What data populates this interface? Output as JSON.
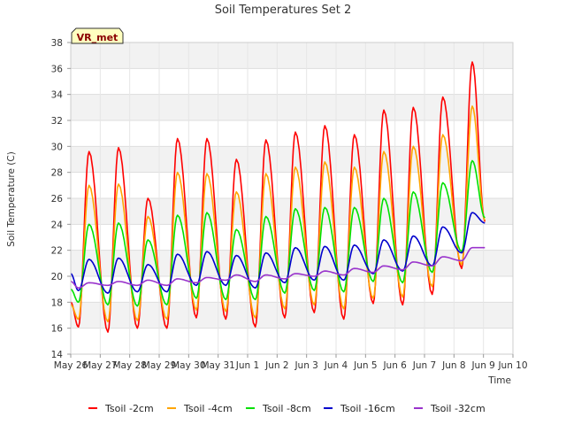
{
  "chart_data": {
    "type": "line",
    "title": "Soil Temperatures Set 2",
    "xlabel": "Time",
    "ylabel": "Soil Temperature (C)",
    "station_label": "VR_met",
    "x_ticks": [
      "May 26",
      "May 27",
      "May 28",
      "May 29",
      "May 30",
      "May 31",
      "Jun 1",
      "Jun 2",
      "Jun 3",
      "Jun 4",
      "Jun 5",
      "Jun 6",
      "Jun 7",
      "Jun 8",
      "Jun 9",
      "Jun 10"
    ],
    "xlim": [
      0,
      15
    ],
    "ylim": [
      14,
      38
    ],
    "y_ticks": [
      14,
      16,
      18,
      20,
      22,
      24,
      26,
      28,
      30,
      32,
      34,
      36,
      38
    ],
    "grid": true,
    "legend_position": "bottom",
    "peak_phase": 0.62,
    "trough_phase": 0.26,
    "series": [
      {
        "name": "Tsoil -2cm",
        "color": "#ff0000",
        "start": 18.0,
        "end": 24.2,
        "days": [
          {
            "min": 16.1,
            "max": 29.6
          },
          {
            "min": 15.7,
            "max": 29.9
          },
          {
            "min": 16.0,
            "max": 26.0
          },
          {
            "min": 16.0,
            "max": 30.6
          },
          {
            "min": 16.8,
            "max": 30.6
          },
          {
            "min": 16.7,
            "max": 29.0
          },
          {
            "min": 16.1,
            "max": 30.5
          },
          {
            "min": 16.8,
            "max": 31.1
          },
          {
            "min": 17.2,
            "max": 31.6
          },
          {
            "min": 16.7,
            "max": 30.9
          },
          {
            "min": 17.9,
            "max": 32.8
          },
          {
            "min": 17.8,
            "max": 33.0
          },
          {
            "min": 18.6,
            "max": 33.8
          },
          {
            "min": 20.6,
            "max": 36.5
          }
        ]
      },
      {
        "name": "Tsoil -4cm",
        "color": "#ffa500",
        "start": 17.8,
        "end": 24.3,
        "days": [
          {
            "min": 16.7,
            "max": 27.0
          },
          {
            "min": 16.5,
            "max": 27.1
          },
          {
            "min": 16.6,
            "max": 24.6
          },
          {
            "min": 16.7,
            "max": 28.0
          },
          {
            "min": 17.4,
            "max": 27.9
          },
          {
            "min": 17.3,
            "max": 26.5
          },
          {
            "min": 16.8,
            "max": 27.9
          },
          {
            "min": 17.5,
            "max": 28.4
          },
          {
            "min": 17.8,
            "max": 28.8
          },
          {
            "min": 17.5,
            "max": 28.4
          },
          {
            "min": 18.3,
            "max": 29.6
          },
          {
            "min": 18.4,
            "max": 30.0
          },
          {
            "min": 19.2,
            "max": 30.9
          },
          {
            "min": 20.9,
            "max": 33.1
          }
        ]
      },
      {
        "name": "Tsoil -8cm",
        "color": "#00e000",
        "start": 19.0,
        "end": 24.5,
        "days": [
          {
            "min": 18.0,
            "max": 24.0
          },
          {
            "min": 17.8,
            "max": 24.1
          },
          {
            "min": 17.7,
            "max": 22.8
          },
          {
            "min": 17.8,
            "max": 24.7
          },
          {
            "min": 18.3,
            "max": 24.9
          },
          {
            "min": 18.2,
            "max": 23.6
          },
          {
            "min": 18.2,
            "max": 24.6
          },
          {
            "min": 18.7,
            "max": 25.2
          },
          {
            "min": 18.9,
            "max": 25.3
          },
          {
            "min": 18.8,
            "max": 25.3
          },
          {
            "min": 19.6,
            "max": 26.0
          },
          {
            "min": 19.5,
            "max": 26.5
          },
          {
            "min": 20.3,
            "max": 27.2
          },
          {
            "min": 21.9,
            "max": 28.9
          }
        ]
      },
      {
        "name": "Tsoil -16cm",
        "color": "#0000cc",
        "start": 20.2,
        "end": 24.1,
        "days": [
          {
            "min": 18.9,
            "max": 21.3
          },
          {
            "min": 18.7,
            "max": 21.4
          },
          {
            "min": 18.8,
            "max": 20.9
          },
          {
            "min": 18.8,
            "max": 21.7
          },
          {
            "min": 19.3,
            "max": 21.9
          },
          {
            "min": 19.3,
            "max": 21.6
          },
          {
            "min": 19.1,
            "max": 21.8
          },
          {
            "min": 19.5,
            "max": 22.2
          },
          {
            "min": 19.7,
            "max": 22.3
          },
          {
            "min": 19.7,
            "max": 22.4
          },
          {
            "min": 20.2,
            "max": 22.8
          },
          {
            "min": 20.4,
            "max": 23.1
          },
          {
            "min": 20.8,
            "max": 23.8
          },
          {
            "min": 21.8,
            "max": 24.9
          }
        ]
      },
      {
        "name": "Tsoil -32cm",
        "color": "#9933cc",
        "start": 19.6,
        "end": 22.2,
        "days": [
          {
            "min": 19.1,
            "max": 19.5
          },
          {
            "min": 19.3,
            "max": 19.6
          },
          {
            "min": 19.3,
            "max": 19.7
          },
          {
            "min": 19.3,
            "max": 19.8
          },
          {
            "min": 19.5,
            "max": 19.9
          },
          {
            "min": 19.7,
            "max": 20.1
          },
          {
            "min": 19.6,
            "max": 20.1
          },
          {
            "min": 19.8,
            "max": 20.2
          },
          {
            "min": 20.0,
            "max": 20.4
          },
          {
            "min": 20.1,
            "max": 20.6
          },
          {
            "min": 20.3,
            "max": 20.8
          },
          {
            "min": 20.5,
            "max": 21.1
          },
          {
            "min": 20.8,
            "max": 21.5
          },
          {
            "min": 21.2,
            "max": 22.2
          }
        ]
      }
    ]
  }
}
